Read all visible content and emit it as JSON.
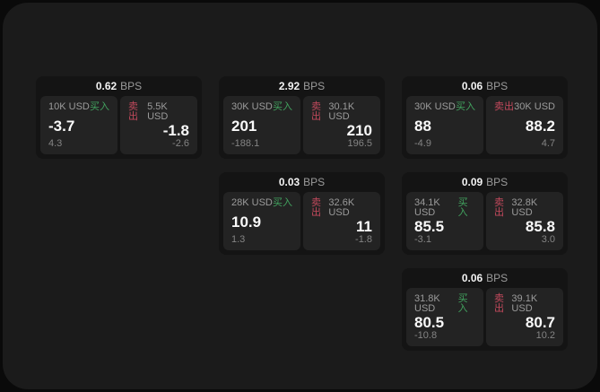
{
  "labels": {
    "bps_unit": "BPS",
    "buy": "买入",
    "sell": "卖出"
  },
  "colors": {
    "background": "#0a0a0a",
    "surface": "#1b1b1b",
    "card": "#141414",
    "panel": "#232323",
    "buy_accent": "#42a35f",
    "sell_accent": "#c2495c"
  },
  "cards": [
    {
      "bps": "0.62",
      "buy": {
        "size": "10K USD",
        "price": "-3.7",
        "change": "4.3"
      },
      "sell": {
        "size": "5.5K USD",
        "price": "-1.8",
        "change": "-2.6"
      }
    },
    {
      "bps": "2.92",
      "buy": {
        "size": "30K USD",
        "price": "201",
        "change": "-188.1"
      },
      "sell": {
        "size": "30.1K USD",
        "price": "210",
        "change": "196.5"
      }
    },
    {
      "bps": "0.06",
      "buy": {
        "size": "30K USD",
        "price": "88",
        "change": "-4.9"
      },
      "sell": {
        "size": "30K USD",
        "price": "88.2",
        "change": "4.7"
      }
    },
    {
      "bps": "0.03",
      "buy": {
        "size": "28K USD",
        "price": "10.9",
        "change": "1.3"
      },
      "sell": {
        "size": "32.6K USD",
        "price": "11",
        "change": "-1.8"
      }
    },
    {
      "bps": "0.09",
      "buy": {
        "size": "34.1K USD",
        "price": "85.5",
        "change": "-3.1"
      },
      "sell": {
        "size": "32.8K USD",
        "price": "85.8",
        "change": "3.0"
      }
    },
    {
      "bps": "0.06",
      "buy": {
        "size": "31.8K USD",
        "price": "80.5",
        "change": "-10.8"
      },
      "sell": {
        "size": "39.1K USD",
        "price": "80.7",
        "change": "10.2"
      }
    }
  ]
}
